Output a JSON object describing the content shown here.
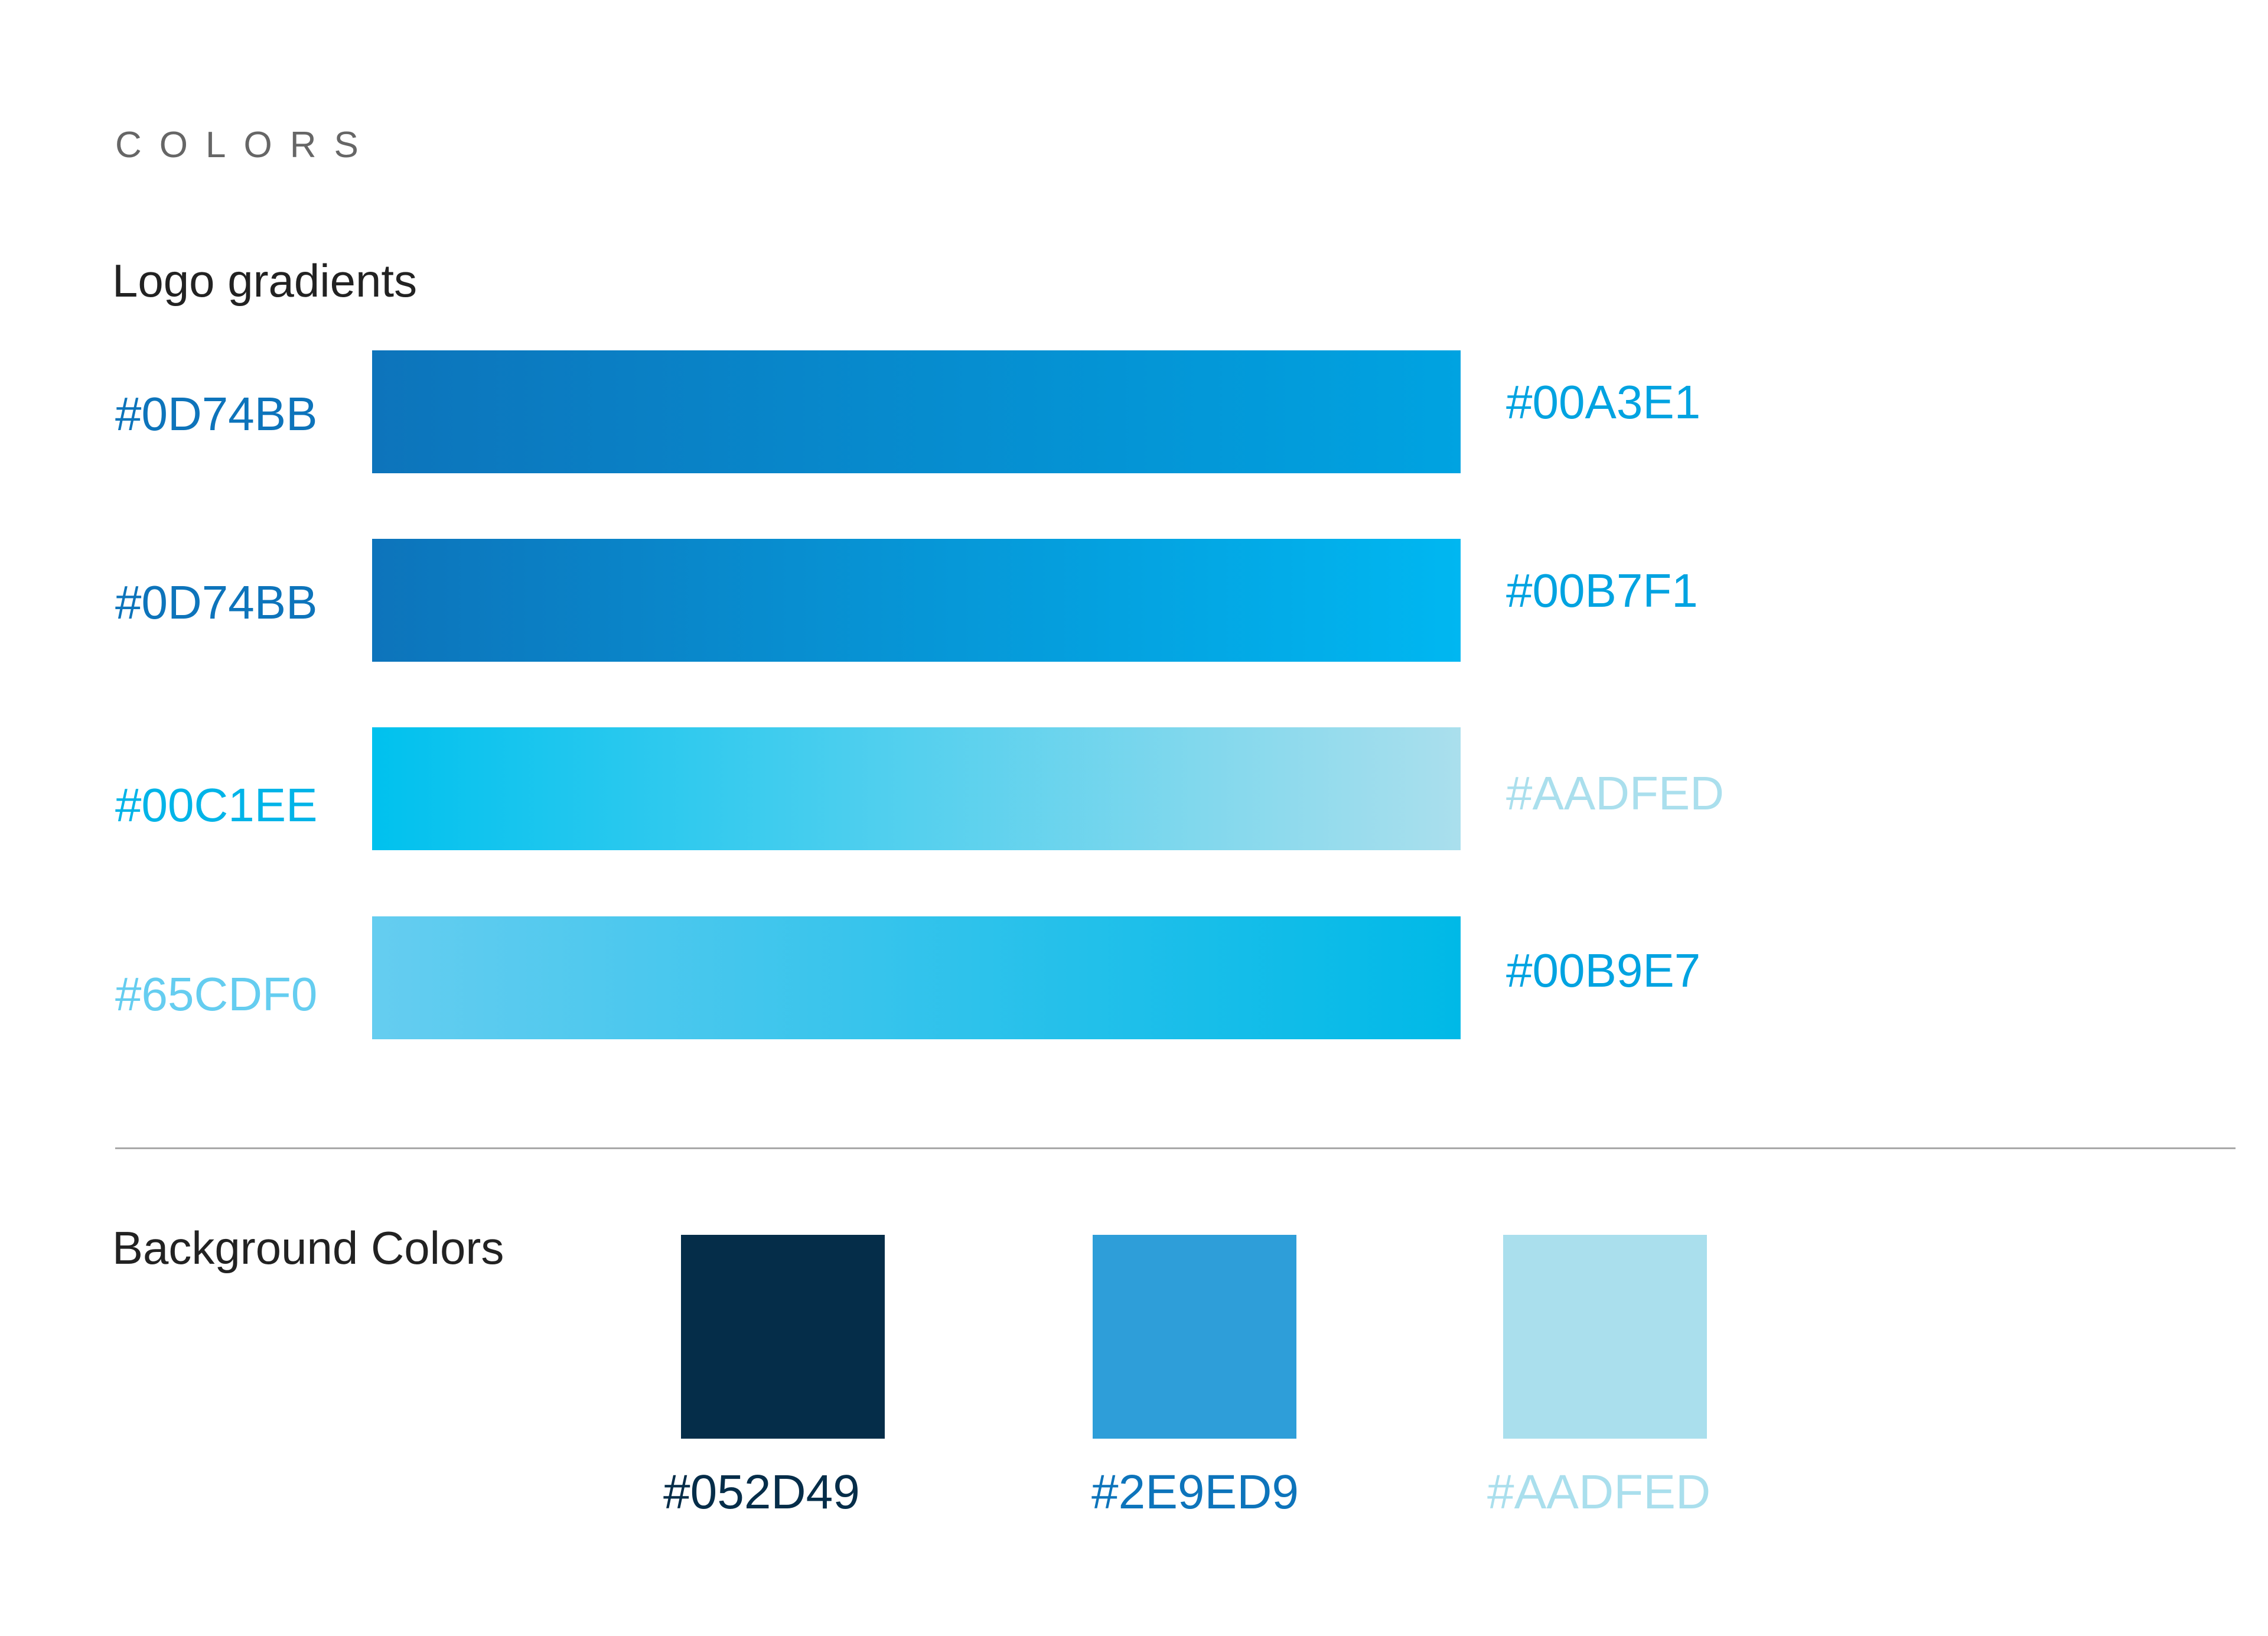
{
  "page": {
    "section_title": "COLORS"
  },
  "logo_gradients": {
    "heading": "Logo gradients",
    "rows": [
      {
        "start_label": "#0D74BB",
        "end_label": "#00A3E1",
        "start_color": "#0D74BB",
        "end_color": "#00A3E1"
      },
      {
        "start_label": "#0D74BB",
        "end_label": "#00B7F1",
        "start_color": "#0D74BB",
        "end_color": "#00B7F1"
      },
      {
        "start_label": "#00C1EE",
        "end_label": "#AADFED",
        "start_color": "#00C1EE",
        "end_color": "#AADFED"
      },
      {
        "start_label": "#65CDF0",
        "end_label": "#00B9E7",
        "start_color": "#65CDF0",
        "end_color": "#00B9E7"
      }
    ]
  },
  "background_colors": {
    "heading": "Background Colors",
    "swatches": [
      {
        "label": "#052D49",
        "color": "#052D49"
      },
      {
        "label": "#2E9ED9",
        "color": "#2E9ED9"
      },
      {
        "label": "#AADFED",
        "color": "#AADFED"
      }
    ]
  }
}
